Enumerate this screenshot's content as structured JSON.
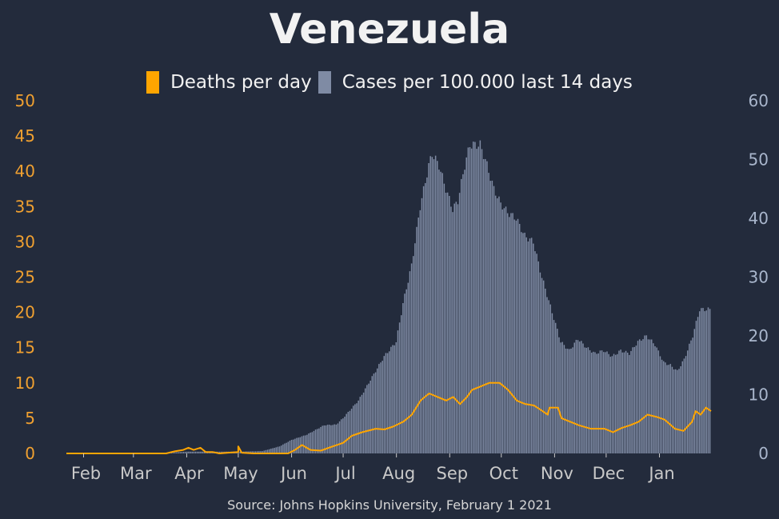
{
  "title": "Venezuela",
  "source": "Source: Johns Hopkins University, February 1 2021",
  "legend": [
    {
      "label": "Deaths per day",
      "color": "#ffa500"
    },
    {
      "label": "Cases per 100.000 last 14 days",
      "color": "#7f8ba4"
    }
  ],
  "chart_data": {
    "type": "bar",
    "x_range": [
      "2020-01-22",
      "2021-01-31"
    ],
    "x_tick_labels": [
      "Feb",
      "Mar",
      "Apr",
      "May",
      "Jun",
      "Jul",
      "Aug",
      "Sep",
      "Oct",
      "Nov",
      "Dec",
      "Jan"
    ],
    "x_tick_dates": [
      "2020-02-01",
      "2020-03-01",
      "2020-04-01",
      "2020-05-01",
      "2020-06-01",
      "2020-07-01",
      "2020-08-01",
      "2020-09-01",
      "2020-10-01",
      "2020-11-01",
      "2020-12-01",
      "2021-01-01"
    ],
    "y_left": {
      "label": "Deaths per day",
      "range": [
        0,
        50
      ],
      "ticks": [
        0,
        5,
        10,
        15,
        20,
        25,
        30,
        35,
        40,
        45,
        50
      ],
      "color": "#f0a030"
    },
    "y_right": {
      "label": "Cases per 100.000 last 14 days",
      "range": [
        0,
        60
      ],
      "ticks": [
        0,
        10,
        20,
        30,
        40,
        50,
        60
      ],
      "color": "#a9b6cc"
    },
    "series": [
      {
        "name": "Cases per 100.000 last 14 days",
        "type": "bar",
        "axis": "right",
        "color": "#7f8ba4",
        "points": [
          [
            "2020-01-22",
            0
          ],
          [
            "2020-03-10",
            0
          ],
          [
            "2020-03-20",
            0.1
          ],
          [
            "2020-04-01",
            0.3
          ],
          [
            "2020-04-15",
            0.3
          ],
          [
            "2020-05-01",
            0.3
          ],
          [
            "2020-05-15",
            0.4
          ],
          [
            "2020-05-25",
            1.2
          ],
          [
            "2020-06-01",
            2.3
          ],
          [
            "2020-06-10",
            3.2
          ],
          [
            "2020-06-20",
            4.8
          ],
          [
            "2020-06-27",
            4.9
          ],
          [
            "2020-07-01",
            6
          ],
          [
            "2020-07-10",
            9
          ],
          [
            "2020-07-20",
            14
          ],
          [
            "2020-07-25",
            16.5
          ],
          [
            "2020-08-01",
            19
          ],
          [
            "2020-08-05",
            25.5
          ],
          [
            "2020-08-10",
            32
          ],
          [
            "2020-08-15",
            42
          ],
          [
            "2020-08-20",
            49
          ],
          [
            "2020-08-22",
            51
          ],
          [
            "2020-08-26",
            49
          ],
          [
            "2020-08-30",
            45
          ],
          [
            "2020-09-03",
            41.5
          ],
          [
            "2020-09-06",
            43
          ],
          [
            "2020-09-10",
            49
          ],
          [
            "2020-09-13",
            52.5
          ],
          [
            "2020-09-19",
            52.5
          ],
          [
            "2020-09-22",
            50
          ],
          [
            "2020-09-27",
            45
          ],
          [
            "2020-10-01",
            42.5
          ],
          [
            "2020-10-05",
            41
          ],
          [
            "2020-10-10",
            40
          ],
          [
            "2020-10-15",
            37
          ],
          [
            "2020-10-20",
            36
          ],
          [
            "2020-10-25",
            30
          ],
          [
            "2020-10-30",
            25
          ],
          [
            "2020-11-05",
            19
          ],
          [
            "2020-11-10",
            17.5
          ],
          [
            "2020-11-15",
            19.5
          ],
          [
            "2020-11-20",
            18
          ],
          [
            "2020-11-25",
            17
          ],
          [
            "2020-11-30",
            17.5
          ],
          [
            "2020-12-05",
            16.5
          ],
          [
            "2020-12-10",
            17.5
          ],
          [
            "2020-12-15",
            17
          ],
          [
            "2020-12-20",
            19
          ],
          [
            "2020-12-25",
            20
          ],
          [
            "2020-12-30",
            18.5
          ],
          [
            "2021-01-04",
            15.5
          ],
          [
            "2021-01-08",
            15
          ],
          [
            "2021-01-12",
            14
          ],
          [
            "2021-01-16",
            16
          ],
          [
            "2021-01-21",
            20
          ],
          [
            "2021-01-25",
            24.5
          ],
          [
            "2021-01-31",
            24.5
          ]
        ]
      },
      {
        "name": "Deaths per day",
        "type": "line",
        "axis": "left",
        "color": "#ffa500",
        "points": [
          [
            "2020-01-22",
            0
          ],
          [
            "2020-03-20",
            0
          ],
          [
            "2020-03-25",
            0.3
          ],
          [
            "2020-03-30",
            0.5
          ],
          [
            "2020-04-02",
            0.8
          ],
          [
            "2020-04-05",
            0.5
          ],
          [
            "2020-04-09",
            0.8
          ],
          [
            "2020-04-12",
            0.2
          ],
          [
            "2020-04-16",
            0.2
          ],
          [
            "2020-04-20",
            0
          ],
          [
            "2020-04-25",
            0.1
          ],
          [
            "2020-05-01",
            0.2
          ],
          [
            "2020-05-01",
            1
          ],
          [
            "2020-05-03",
            0.1
          ],
          [
            "2020-05-10",
            0
          ],
          [
            "2020-05-30",
            0
          ],
          [
            "2020-06-03",
            0.5
          ],
          [
            "2020-06-07",
            1.2
          ],
          [
            "2020-06-12",
            0.5
          ],
          [
            "2020-06-18",
            0.4
          ],
          [
            "2020-06-25",
            1
          ],
          [
            "2020-07-01",
            1.5
          ],
          [
            "2020-07-06",
            2.5
          ],
          [
            "2020-07-12",
            3
          ],
          [
            "2020-07-20",
            3.5
          ],
          [
            "2020-07-25",
            3.4
          ],
          [
            "2020-07-30",
            3.8
          ],
          [
            "2020-08-05",
            4.5
          ],
          [
            "2020-08-10",
            5.5
          ],
          [
            "2020-08-15",
            7.5
          ],
          [
            "2020-08-20",
            8.5
          ],
          [
            "2020-08-25",
            8
          ],
          [
            "2020-08-30",
            7.5
          ],
          [
            "2020-09-03",
            8
          ],
          [
            "2020-09-07",
            7
          ],
          [
            "2020-09-11",
            8
          ],
          [
            "2020-09-14",
            9
          ],
          [
            "2020-09-19",
            9.5
          ],
          [
            "2020-09-24",
            10
          ],
          [
            "2020-09-30",
            10
          ],
          [
            "2020-10-05",
            9
          ],
          [
            "2020-10-10",
            7.5
          ],
          [
            "2020-10-15",
            7
          ],
          [
            "2020-10-20",
            6.8
          ],
          [
            "2020-10-25",
            6
          ],
          [
            "2020-10-28",
            5.5
          ],
          [
            "2020-10-29",
            6.5
          ],
          [
            "2020-11-03",
            6.5
          ],
          [
            "2020-11-05",
            5
          ],
          [
            "2020-11-10",
            4.5
          ],
          [
            "2020-11-15",
            4
          ],
          [
            "2020-11-22",
            3.5
          ],
          [
            "2020-11-30",
            3.5
          ],
          [
            "2020-12-05",
            3
          ],
          [
            "2020-12-10",
            3.6
          ],
          [
            "2020-12-15",
            4
          ],
          [
            "2020-12-20",
            4.5
          ],
          [
            "2020-12-25",
            5.5
          ],
          [
            "2020-12-30",
            5.2
          ],
          [
            "2021-01-04",
            4.8
          ],
          [
            "2021-01-10",
            3.5
          ],
          [
            "2021-01-15",
            3.2
          ],
          [
            "2021-01-20",
            4.5
          ],
          [
            "2021-01-22",
            6
          ],
          [
            "2021-01-25",
            5.5
          ],
          [
            "2021-01-28",
            6.5
          ],
          [
            "2021-01-31",
            6
          ]
        ]
      }
    ]
  }
}
